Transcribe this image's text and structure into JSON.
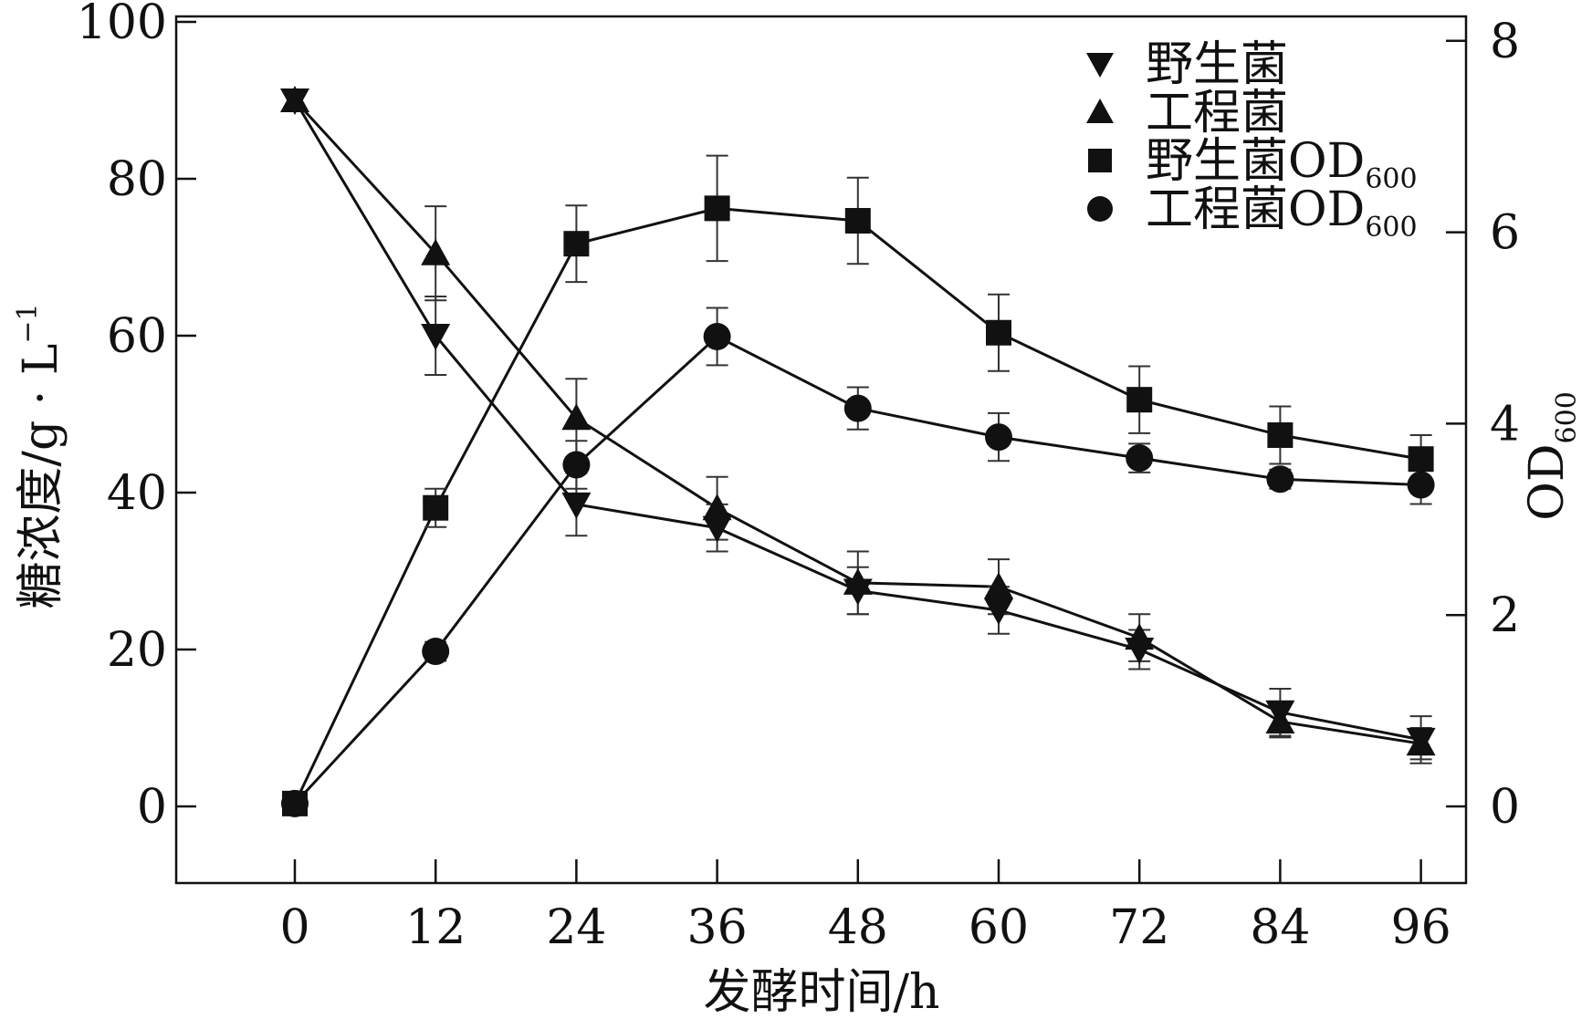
{
  "chart_data": {
    "type": "line",
    "xlabel": "发酵时间/h",
    "ylabel_left": "糖浓度/g · L",
    "ylabel_left_superscript": "−1",
    "ylabel_right": "OD",
    "ylabel_right_subscript": "600",
    "x": [
      0,
      12,
      24,
      36,
      48,
      60,
      72,
      84,
      96
    ],
    "x_tick_labels": [
      "0",
      "12",
      "24",
      "36",
      "48",
      "60",
      "72",
      "84",
      "96"
    ],
    "xlim": [
      -10,
      100
    ],
    "ylim_left": [
      -10,
      100
    ],
    "ylim_right": [
      -0.8,
      8
    ],
    "left_ticks": [
      "0",
      "20",
      "40",
      "60",
      "80",
      "100"
    ],
    "right_ticks": [
      "0",
      "2",
      "4",
      "6",
      "8"
    ],
    "legend_position": "top-right",
    "grid": false,
    "series": [
      {
        "name": "野生菌",
        "axis": "left",
        "marker": "triangle-down",
        "values": [
          90,
          60,
          38.5,
          35.5,
          27.5,
          25,
          20,
          12,
          8.5
        ],
        "errors": [
          0,
          5,
          4,
          3,
          3,
          3,
          2.5,
          3,
          3
        ]
      },
      {
        "name": "工程菌",
        "axis": "left",
        "marker": "triangle-up",
        "values": [
          90,
          70.5,
          49.5,
          38,
          28.5,
          28,
          21.5,
          10.8,
          8
        ],
        "errors": [
          0,
          6,
          5,
          4,
          4,
          3.5,
          3,
          2,
          2
        ]
      },
      {
        "name": "野生菌OD",
        "name_subscript": "600",
        "axis": "right",
        "marker": "square",
        "values": [
          0.03,
          3.12,
          5.88,
          6.25,
          6.12,
          4.95,
          4.25,
          3.88,
          3.63
        ],
        "errors": [
          0,
          0.2,
          0.4,
          0.55,
          0.45,
          0.4,
          0.35,
          0.3,
          0.25
        ]
      },
      {
        "name": "工程菌OD",
        "name_subscript": "600",
        "axis": "right",
        "marker": "circle",
        "values": [
          0.03,
          1.62,
          3.57,
          4.91,
          4.16,
          3.86,
          3.64,
          3.42,
          3.36
        ],
        "errors": [
          0,
          0.1,
          0.25,
          0.3,
          0.22,
          0.25,
          0.15,
          0.1,
          0.2
        ]
      }
    ]
  }
}
